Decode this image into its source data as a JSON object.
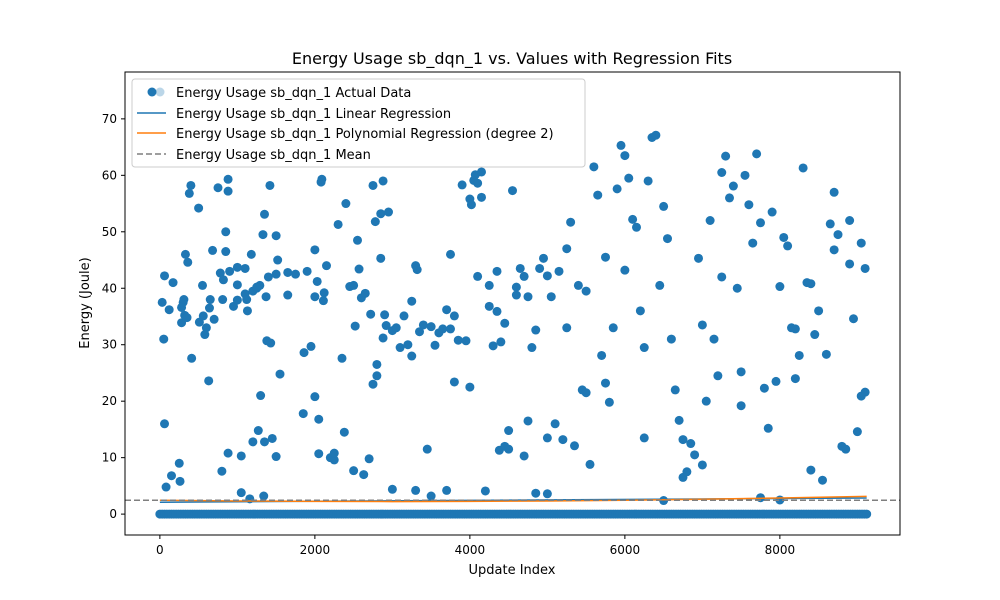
{
  "chart_data": {
    "type": "scatter",
    "title": "Energy Usage sb_dqn_1 vs. Values with Regression Fits",
    "xlabel": "Update Index",
    "ylabel": "Energy (Joule)",
    "xlim": [
      -450,
      9550
    ],
    "ylim": [
      -3.7,
      78.3
    ],
    "x_ticks": [
      0,
      2000,
      4000,
      6000,
      8000
    ],
    "y_ticks": [
      0,
      10,
      20,
      30,
      40,
      50,
      60,
      70
    ],
    "grid": false,
    "legend_position": "top-left",
    "legend": [
      {
        "label": "Energy Usage sb_dqn_1 Actual Data",
        "kind": "marker",
        "color": "#1f77b4"
      },
      {
        "label": "Energy Usage sb_dqn_1 Linear Regression",
        "kind": "line",
        "color": "#1f77b4"
      },
      {
        "label": "Energy Usage sb_dqn_1 Polynomial Regression (degree 2)",
        "kind": "line",
        "color": "#ff7f0e"
      },
      {
        "label": "Energy Usage sb_dqn_1 Mean",
        "kind": "dashed",
        "color": "#7f7f7f"
      }
    ],
    "series": [
      {
        "name": "Energy Usage sb_dqn_1 Actual Data",
        "type": "scatter",
        "color": "#1f77b4",
        "baseline": {
          "x_start": 0,
          "x_end": 9120,
          "x_step": 30,
          "y": 0
        },
        "points": [
          [
            30,
            37.5
          ],
          [
            50,
            31
          ],
          [
            60,
            42.2
          ],
          [
            60,
            16
          ],
          [
            80,
            4.8
          ],
          [
            120,
            36.2
          ],
          [
            150,
            6.8
          ],
          [
            170,
            41
          ],
          [
            250,
            9
          ],
          [
            260,
            5.8
          ],
          [
            280,
            36.6
          ],
          [
            280,
            33.9
          ],
          [
            300,
            37.5
          ],
          [
            310,
            38
          ],
          [
            320,
            35.2
          ],
          [
            330,
            46
          ],
          [
            350,
            34.8
          ],
          [
            360,
            44.6
          ],
          [
            380,
            56.8
          ],
          [
            400,
            58.2
          ],
          [
            410,
            27.6
          ],
          [
            500,
            54.2
          ],
          [
            510,
            34
          ],
          [
            550,
            40.5
          ],
          [
            560,
            35.1
          ],
          [
            580,
            31.8
          ],
          [
            600,
            33
          ],
          [
            630,
            23.6
          ],
          [
            640,
            36.5
          ],
          [
            650,
            38
          ],
          [
            680,
            46.7
          ],
          [
            700,
            34.5
          ],
          [
            750,
            57.8
          ],
          [
            780,
            42.7
          ],
          [
            800,
            7.6
          ],
          [
            810,
            38
          ],
          [
            820,
            41.5
          ],
          [
            850,
            50
          ],
          [
            850,
            46.5
          ],
          [
            880,
            57.2
          ],
          [
            880,
            59.3
          ],
          [
            880,
            10.8
          ],
          [
            900,
            43
          ],
          [
            950,
            36.8
          ],
          [
            1000,
            40.6
          ],
          [
            1000,
            37.9
          ],
          [
            1050,
            10.3
          ],
          [
            1050,
            3.8
          ],
          [
            1100,
            39
          ],
          [
            1100,
            43.5
          ],
          [
            1120,
            38
          ],
          [
            1130,
            36
          ],
          [
            1160,
            2.7
          ],
          [
            1180,
            46
          ],
          [
            1200,
            39.5
          ],
          [
            1200,
            12.8
          ],
          [
            1250,
            40
          ],
          [
            1270,
            14.8
          ],
          [
            1290,
            40.5
          ],
          [
            1300,
            21
          ],
          [
            1330,
            49.5
          ],
          [
            1340,
            3.2
          ],
          [
            1350,
            53.1
          ],
          [
            1350,
            12.8
          ],
          [
            1370,
            38.5
          ],
          [
            1380,
            30.7
          ],
          [
            1400,
            42
          ],
          [
            1420,
            58.2
          ],
          [
            1430,
            30.3
          ],
          [
            1450,
            13.4
          ],
          [
            1500,
            42.5
          ],
          [
            1500,
            49.3
          ],
          [
            1520,
            45
          ],
          [
            1550,
            24.8
          ],
          [
            1650,
            42.8
          ],
          [
            1650,
            38.8
          ],
          [
            1850,
            17.8
          ],
          [
            1860,
            28.6
          ],
          [
            1900,
            43
          ],
          [
            1950,
            29.7
          ],
          [
            2000,
            38.5
          ],
          [
            2000,
            46.8
          ],
          [
            2030,
            41.2
          ],
          [
            2050,
            16.8
          ],
          [
            2050,
            10.7
          ],
          [
            2080,
            58.8
          ],
          [
            2090,
            59.3
          ],
          [
            2110,
            37.8
          ],
          [
            2120,
            39.2
          ],
          [
            2150,
            44
          ],
          [
            2200,
            10
          ],
          [
            2250,
            9.6
          ],
          [
            2300,
            51.3
          ],
          [
            2350,
            27.6
          ],
          [
            2380,
            14.5
          ],
          [
            2400,
            55
          ],
          [
            2450,
            40.3
          ],
          [
            2500,
            7.7
          ],
          [
            2520,
            33.3
          ],
          [
            2550,
            48.5
          ],
          [
            2570,
            43.4
          ],
          [
            2600,
            38.3
          ],
          [
            2630,
            7
          ],
          [
            2650,
            39.1
          ],
          [
            2700,
            9.8
          ],
          [
            2720,
            35.4
          ],
          [
            2750,
            58.2
          ],
          [
            2780,
            51.8
          ],
          [
            2800,
            26.5
          ],
          [
            2800,
            24.5
          ],
          [
            2850,
            45.3
          ],
          [
            2850,
            53.2
          ],
          [
            2880,
            59
          ],
          [
            2880,
            31.2
          ],
          [
            2900,
            35.3
          ],
          [
            2920,
            33.4
          ],
          [
            2950,
            53.5
          ],
          [
            3000,
            32.5
          ],
          [
            3050,
            33
          ],
          [
            3100,
            29.5
          ],
          [
            3150,
            35.1
          ],
          [
            3200,
            30
          ],
          [
            3250,
            37.7
          ],
          [
            3300,
            44
          ],
          [
            3300,
            4.2
          ],
          [
            3320,
            43.3
          ],
          [
            3350,
            32.3
          ],
          [
            3400,
            33.5
          ],
          [
            3450,
            11.5
          ],
          [
            3500,
            3.2
          ],
          [
            3550,
            29.9
          ],
          [
            3600,
            32.1
          ],
          [
            3650,
            32.8
          ],
          [
            3700,
            36.2
          ],
          [
            3700,
            4.2
          ],
          [
            3750,
            32.8
          ],
          [
            3800,
            23.4
          ],
          [
            3800,
            35.1
          ],
          [
            3850,
            30.8
          ],
          [
            3900,
            58.3
          ],
          [
            3950,
            30.7
          ],
          [
            4000,
            55.8
          ],
          [
            4020,
            54.8
          ],
          [
            4050,
            59.1
          ],
          [
            4070,
            60.1
          ],
          [
            4100,
            42.1
          ],
          [
            4100,
            58.6
          ],
          [
            4150,
            60.6
          ],
          [
            4150,
            56.1
          ],
          [
            4200,
            4.1
          ],
          [
            4250,
            36.8
          ],
          [
            4300,
            29.8
          ],
          [
            4350,
            35.9
          ],
          [
            4350,
            43
          ],
          [
            4380,
            11.3
          ],
          [
            4400,
            30.5
          ],
          [
            4450,
            12
          ],
          [
            4450,
            33.8
          ],
          [
            4500,
            14.8
          ],
          [
            4550,
            57.3
          ],
          [
            4600,
            38.8
          ],
          [
            4600,
            40.2
          ],
          [
            4650,
            43.5
          ],
          [
            4700,
            42.1
          ],
          [
            4700,
            10.3
          ],
          [
            4750,
            38.5
          ],
          [
            4800,
            29.5
          ],
          [
            4850,
            3.7
          ],
          [
            4850,
            32.6
          ],
          [
            4900,
            43.5
          ],
          [
            4950,
            45.3
          ],
          [
            5000,
            42.2
          ],
          [
            5000,
            13.5
          ],
          [
            5050,
            38.5
          ],
          [
            5100,
            16
          ],
          [
            5150,
            43
          ],
          [
            5200,
            13.2
          ],
          [
            5250,
            47
          ],
          [
            5300,
            51.7
          ],
          [
            5350,
            12.1
          ],
          [
            5400,
            40.5
          ],
          [
            5450,
            22
          ],
          [
            5500,
            21.5
          ],
          [
            5550,
            8.8
          ],
          [
            5600,
            61.5
          ],
          [
            5650,
            56.5
          ],
          [
            5700,
            28.1
          ],
          [
            5750,
            23.2
          ],
          [
            5800,
            19.8
          ],
          [
            5850,
            33
          ],
          [
            5900,
            57.6
          ],
          [
            5950,
            65.3
          ],
          [
            6000,
            63.5
          ],
          [
            6050,
            59.5
          ],
          [
            6100,
            52.2
          ],
          [
            6150,
            50.8
          ],
          [
            6200,
            36
          ],
          [
            6250,
            29.5
          ],
          [
            6300,
            59
          ],
          [
            6350,
            66.7
          ],
          [
            6400,
            67.1
          ],
          [
            6450,
            40.5
          ],
          [
            6500,
            54.5
          ],
          [
            6550,
            48.8
          ],
          [
            6600,
            31
          ],
          [
            6650,
            22
          ],
          [
            6700,
            16.6
          ],
          [
            6750,
            6.5
          ],
          [
            6800,
            7.5
          ],
          [
            6850,
            12.5
          ],
          [
            6900,
            10.5
          ],
          [
            6950,
            45.3
          ],
          [
            7000,
            33.5
          ],
          [
            7050,
            20
          ],
          [
            7100,
            52
          ],
          [
            7150,
            31
          ],
          [
            7200,
            24.5
          ],
          [
            7250,
            60.5
          ],
          [
            7300,
            63.4
          ],
          [
            7350,
            56
          ],
          [
            7400,
            58.1
          ],
          [
            7450,
            40
          ],
          [
            7500,
            25.2
          ],
          [
            7550,
            60
          ],
          [
            7600,
            54.8
          ],
          [
            7650,
            48
          ],
          [
            7700,
            63.8
          ],
          [
            7750,
            51.6
          ],
          [
            7800,
            22.3
          ],
          [
            7850,
            15.2
          ],
          [
            7900,
            53.5
          ],
          [
            7950,
            23.5
          ],
          [
            8000,
            40.3
          ],
          [
            8050,
            49
          ],
          [
            8100,
            47.5
          ],
          [
            8150,
            33
          ],
          [
            8200,
            24
          ],
          [
            8250,
            28.1
          ],
          [
            8300,
            61.3
          ],
          [
            8350,
            41
          ],
          [
            8400,
            7.8
          ],
          [
            8450,
            31.8
          ],
          [
            8500,
            36
          ],
          [
            8550,
            6
          ],
          [
            8600,
            28.3
          ],
          [
            8650,
            51.4
          ],
          [
            8700,
            57
          ],
          [
            8750,
            49.5
          ],
          [
            8800,
            12
          ],
          [
            8850,
            11.5
          ],
          [
            8900,
            52
          ],
          [
            8950,
            34.6
          ],
          [
            9000,
            14.6
          ],
          [
            9050,
            48
          ],
          [
            9100,
            21.6
          ],
          [
            9100,
            43.5
          ],
          [
            9050,
            20.9
          ],
          [
            8900,
            44.3
          ],
          [
            8700,
            46.8
          ],
          [
            8400,
            40.8
          ],
          [
            8200,
            32.8
          ],
          [
            8000,
            2.5
          ],
          [
            7750,
            2.9
          ],
          [
            7500,
            19.2
          ],
          [
            7250,
            42
          ],
          [
            7000,
            8.7
          ],
          [
            6750,
            13.2
          ],
          [
            6500,
            2.4
          ],
          [
            6250,
            13.5
          ],
          [
            6000,
            43.2
          ],
          [
            5750,
            45.5
          ],
          [
            5500,
            39.5
          ],
          [
            5250,
            33
          ],
          [
            5000,
            3.6
          ],
          [
            4750,
            16.5
          ],
          [
            4500,
            11.5
          ],
          [
            4250,
            40.5
          ],
          [
            4000,
            22.5
          ],
          [
            3750,
            46
          ],
          [
            3500,
            33.2
          ],
          [
            3250,
            28
          ],
          [
            3000,
            4.4
          ],
          [
            2750,
            23
          ],
          [
            2500,
            40.5
          ],
          [
            2250,
            10.8
          ],
          [
            2000,
            20.8
          ],
          [
            1750,
            42.5
          ],
          [
            1500,
            10.2
          ],
          [
            1250,
            40.2
          ],
          [
            1000,
            43.7
          ]
        ]
      },
      {
        "name": "Energy Usage sb_dqn_1 Linear Regression",
        "type": "line",
        "color": "#1f77b4",
        "x": [
          0,
          9120
        ],
        "y": [
          2.1,
          2.85
        ]
      },
      {
        "name": "Energy Usage sb_dqn_1 Polynomial Regression (degree 2)",
        "type": "line",
        "color": "#ff7f0e",
        "x": [
          0,
          1000,
          2000,
          3000,
          4000,
          5000,
          6000,
          7000,
          8000,
          9120
        ],
        "y": [
          2.45,
          2.33,
          2.25,
          2.22,
          2.25,
          2.33,
          2.46,
          2.64,
          2.86,
          3.15
        ]
      },
      {
        "name": "Energy Usage sb_dqn_1 Mean",
        "type": "hline",
        "color": "#7f7f7f",
        "y": 2.45
      }
    ]
  }
}
